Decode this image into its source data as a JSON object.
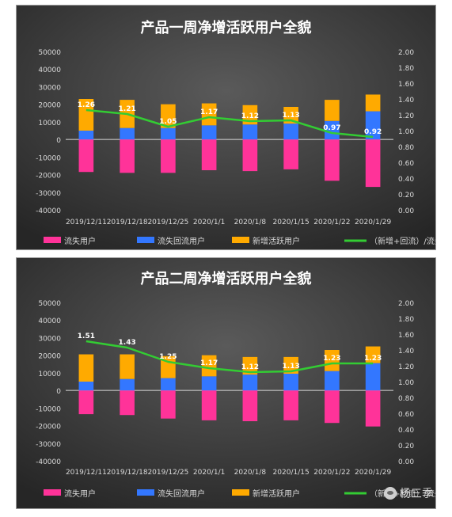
{
  "chart_data": [
    {
      "type": "bar",
      "title": "产品一周净增活跃用户全貌",
      "categories": [
        "2019/12/11",
        "2019/12/18",
        "2019/12/25",
        "2020/1/1",
        "2020/1/8",
        "2020/1/15",
        "2020/1/22",
        "2020/1/29"
      ],
      "left_axis": {
        "min": -40000,
        "max": 50000,
        "step": 10000,
        "ticks": [
          "50000",
          "40000",
          "30000",
          "20000",
          "10000",
          "0",
          "-10000",
          "-20000",
          "-30000",
          "-40000"
        ]
      },
      "right_axis": {
        "min": 0,
        "max": 2,
        "step": 0.2,
        "ticks": [
          "2.00",
          "1.80",
          "1.60",
          "1.40",
          "1.20",
          "1.00",
          "0.80",
          "0.60",
          "0.40",
          "0.20",
          "0.00"
        ]
      },
      "series": [
        {
          "name": "流失用户",
          "kind": "bar",
          "axis": "left",
          "color": "#ff3399",
          "values": [
            -18500,
            -19000,
            -19000,
            -17500,
            -18000,
            -17000,
            -23500,
            -27000
          ]
        },
        {
          "name": "流失回流用户",
          "kind": "bar",
          "axis": "left",
          "color": "#3377ff",
          "values": [
            5000,
            6500,
            6500,
            8000,
            8500,
            9000,
            10500,
            16000
          ]
        },
        {
          "name": "新增活跃用户",
          "kind": "bar",
          "axis": "left",
          "color": "#ffaa00",
          "values": [
            18000,
            16000,
            13500,
            12500,
            11000,
            9500,
            12000,
            9500
          ]
        },
        {
          "name": "（新增+回流）/流失",
          "kind": "line",
          "axis": "right",
          "color": "#33cc33",
          "values": [
            1.26,
            1.21,
            1.05,
            1.17,
            1.12,
            1.13,
            0.97,
            0.92
          ],
          "labels": [
            "1.26",
            "1.21",
            "1.05",
            "1.17",
            "1.12",
            "1.13",
            "0.97",
            "0.92"
          ]
        }
      ],
      "legend_position": "bottom",
      "stacked": true
    },
    {
      "type": "bar",
      "title": "产品二周净增活跃用户全貌",
      "categories": [
        "2019/12/11",
        "2019/12/18",
        "2019/12/25",
        "2020/1/1",
        "2020/1/8",
        "2020/1/15",
        "2020/1/22",
        "2020/1/29"
      ],
      "left_axis": {
        "min": -40000,
        "max": 50000,
        "step": 10000,
        "ticks": [
          "50000",
          "40000",
          "30000",
          "20000",
          "10000",
          "0",
          "-10000",
          "-20000",
          "-30000",
          "-40000"
        ]
      },
      "right_axis": {
        "min": 0,
        "max": 2,
        "step": 0.2,
        "ticks": [
          "2.00",
          "1.80",
          "1.60",
          "1.40",
          "1.20",
          "1.00",
          "0.80",
          "0.60",
          "0.40",
          "0.20",
          "0.00"
        ]
      },
      "series": [
        {
          "name": "流失用户",
          "kind": "bar",
          "axis": "left",
          "color": "#ff3399",
          "values": [
            -13500,
            -14000,
            -16000,
            -17000,
            -17500,
            -17000,
            -18500,
            -20500
          ]
        },
        {
          "name": "流失回流用户",
          "kind": "bar",
          "axis": "left",
          "color": "#3377ff",
          "values": [
            5000,
            6500,
            7000,
            8000,
            9000,
            9500,
            11000,
            15500
          ]
        },
        {
          "name": "新增活跃用户",
          "kind": "bar",
          "axis": "left",
          "color": "#ffaa00",
          "values": [
            15500,
            14000,
            12500,
            12000,
            10000,
            9500,
            12000,
            9500
          ]
        },
        {
          "name": "（新增+回流）/流失",
          "kind": "line",
          "axis": "right",
          "color": "#33cc33",
          "values": [
            1.51,
            1.43,
            1.25,
            1.17,
            1.12,
            1.13,
            1.23,
            1.23
          ],
          "labels": [
            "1.51",
            "1.43",
            "1.25",
            "1.17",
            "1.12",
            "1.13",
            "1.23",
            "1.23"
          ]
        }
      ],
      "legend_position": "bottom",
      "stacked": true
    }
  ],
  "watermark": {
    "text": "杨三季",
    "icon": "wechat-icon"
  }
}
